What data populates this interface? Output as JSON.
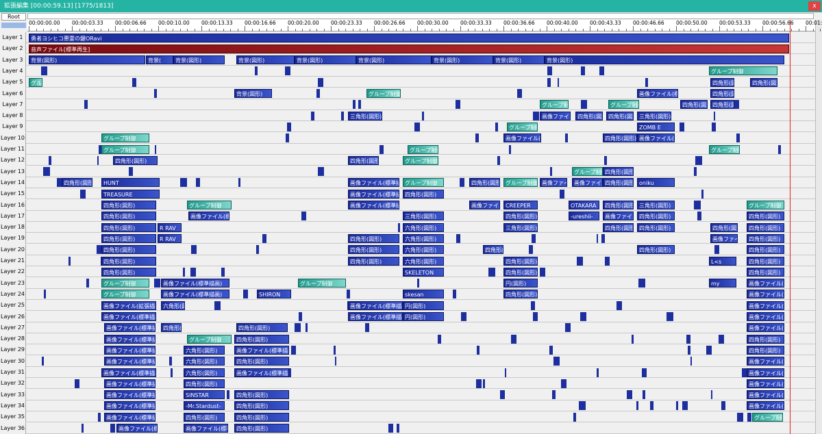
{
  "header": {
    "title": "拡張編集 [00:00:59.13] [1775/1813]",
    "close": "x",
    "root": "Root"
  },
  "ruler": {
    "labels": [
      "00:00:00.00",
      "00:00:03.33",
      "00:00:06.66",
      "00:00:10.00",
      "00:00:13.33",
      "00:00:16.66",
      "00:00:20.00",
      "00:00:23.33",
      "00:00:26.66",
      "00:00:30.00",
      "00:00:33.33",
      "00:00:36.66",
      "00:00:40.00",
      "00:00:43.33",
      "00:00:46.66",
      "00:00:50.00",
      "00:00:53.33",
      "00:00:56.66",
      "00:01:"
    ]
  },
  "layers": [
    {
      "name": "Layer 1",
      "clips": [
        "勇者ヨシヒコ悪霊の鍵ORavi"
      ]
    },
    {
      "name": "Layer 2",
      "clips": [
        "音声ファイル[標準再生]"
      ]
    },
    {
      "name": "Layer 3",
      "clips": [
        "背景(図形)",
        "背景(",
        "背景(図形)",
        "背景(図形)",
        "背景(図形)",
        "背景(図形)",
        "背景(図形)",
        "背景(図形)",
        "背景(図形)"
      ]
    },
    {
      "name": "Layer 4",
      "clips": [
        "グループ制御"
      ]
    },
    {
      "name": "Layer 5",
      "clips": [
        "グル",
        "四角形(図",
        "四角形(図形)"
      ]
    },
    {
      "name": "Layer 6",
      "clips": [
        "背景(図形)",
        "グループ制御",
        "画像ファイル(標準",
        "四角形(図"
      ]
    },
    {
      "name": "Layer 7",
      "clips": [
        "グループ制",
        "グループ制御",
        "四角形(図形)",
        "四角形(図"
      ]
    },
    {
      "name": "Layer 8",
      "clips": [
        "三角形(図形)",
        "画像ファイル",
        "四角形(図形)",
        "四角形(図形)",
        "三角形(図形)"
      ]
    },
    {
      "name": "Layer 9",
      "clips": [
        "グループ制御",
        "ZOMB E"
      ]
    },
    {
      "name": "Layer 10",
      "clips": [
        "グループ制御",
        "画像ファイル(標準",
        "四角形(図形)",
        "画像ファイル(標準"
      ]
    },
    {
      "name": "Layer 11",
      "clips": [
        "グループ制御",
        "グループ制御",
        "グループ制御"
      ]
    },
    {
      "name": "Layer 12",
      "clips": [
        "四角形(図形)",
        "四角形(図形)",
        "グループ制御"
      ]
    },
    {
      "name": "Layer 13",
      "clips": [
        "グループ制御",
        "四角形(図形)"
      ]
    },
    {
      "name": "Layer 14",
      "clips": [
        "四角形(図形)",
        "HUNT",
        "画像ファイル(標準描画)",
        "グループ制御",
        "四角形(図形)",
        "グループ制御",
        "画像ファイル",
        "画像ファイル",
        "四角形(図形)",
        "oniku"
      ]
    },
    {
      "name": "Layer 15",
      "clips": [
        "TREASURE",
        "画像ファイル(標準描画)",
        "四角形(図形)"
      ]
    },
    {
      "name": "Layer 16",
      "clips": [
        "四角形(図形)",
        "グループ制御",
        "画像ファイル(標準描画)",
        "画像ファイル",
        "CREEPER",
        "OTAKARA",
        "四角形(図形)",
        "三角形(図形)",
        "グループ制御"
      ]
    },
    {
      "name": "Layer 17",
      "clips": [
        "四角形(図形)",
        "画像ファイル(標準",
        "三角形(図形)",
        "四角形(図形)",
        "-ureshii-",
        "画像ファイル",
        "四角形(図形)",
        "四角形(図形)"
      ]
    },
    {
      "name": "Layer 18",
      "clips": [
        "四角形(図形)",
        "R RAV",
        "六角形(図形)",
        "三角形(図形)",
        "四角形(図形)",
        "四角形(図形)",
        "四角形(図形)",
        "四角形(図形)"
      ]
    },
    {
      "name": "Layer 19",
      "clips": [
        "四角形(図形)",
        "R RAV",
        "四角形(図形)",
        "六角形(図形)",
        "画像ファイル",
        "四角形(図形)"
      ]
    },
    {
      "name": "Layer 20",
      "clips": [
        "四角形(図形)",
        "四角形(図形)",
        "六角形(図形)",
        "四角形(図形)",
        "四角形(図形)",
        "四角形(図形)"
      ]
    },
    {
      "name": "Layer 21",
      "clips": [
        "四角形(図形)",
        "四角形(図形)",
        "六角形(図形)",
        "四角形(図形)",
        "L<s",
        "四角形(図形)"
      ]
    },
    {
      "name": "Layer 22",
      "clips": [
        "四角形(図形)",
        "SKELETON",
        "四角形(図形)",
        "四角形(図形)"
      ]
    },
    {
      "name": "Layer 23",
      "clips": [
        "グループ制御",
        "画像ファイル(標準描画)",
        "グループ制御",
        "円(図形)",
        "my",
        "画像ファイル(拡張描画)"
      ]
    },
    {
      "name": "Layer 24",
      "clips": [
        "グループ制御",
        "画像ファイル(標準描画)",
        "SHIRON",
        "skesan",
        "四角形(図形)",
        "画像ファイル(拡張描画)"
      ]
    },
    {
      "name": "Layer 25",
      "clips": [
        "画像ファイル(拡張描画)",
        "六角形(図形)",
        "画像ファイル(標準描画)",
        "円(図形)",
        "画像ファイル(拡張描画)"
      ]
    },
    {
      "name": "Layer 26",
      "clips": [
        "画像ファイル(標準描画)",
        "画像ファイル(標準描画)",
        "円(図形)",
        "画像ファイル(拡張描画)"
      ]
    },
    {
      "name": "Layer 27",
      "clips": [
        "画像ファイル(標準描画)",
        "四角形(図形)",
        "四角形(図形)",
        "画像ファイル(標準描画)"
      ]
    },
    {
      "name": "Layer 28",
      "clips": [
        "画像ファイル(標準描画)",
        "グループ制御",
        "四角形(図形)",
        "四角形(図形)"
      ]
    },
    {
      "name": "Layer 29",
      "clips": [
        "画像ファイル(標準描画)",
        "六角形(図形)",
        "画像ファイル(標準描画)",
        "四角形(図形)"
      ]
    },
    {
      "name": "Layer 30",
      "clips": [
        "画像ファイル(標準描画)",
        "六角形(図形)",
        "四角形(図形)",
        "画像ファイル(標準描画)"
      ]
    },
    {
      "name": "Layer 31",
      "clips": [
        "画像ファイル(標準描画)",
        "六角形(図形)",
        "画像ファイル(標準描画)",
        "画像ファイル(標準描画)"
      ]
    },
    {
      "name": "Layer 32",
      "clips": [
        "画像ファイル(標準描画)",
        "四角形(図形)",
        "画像ファイル(標準描画)"
      ]
    },
    {
      "name": "Layer 33",
      "clips": [
        "画像ファイル(標準描画)",
        "SINSTAR",
        "四角形(図形)",
        "画像ファイル(標準描画)"
      ]
    },
    {
      "name": "Layer 34",
      "clips": [
        "画像ファイル(標準描画)",
        "-Mr.Stardust-",
        "四角形(図形)",
        "画像ファイル(標準描画)"
      ]
    },
    {
      "name": "Layer 35",
      "clips": [
        "画像ファイル(標準描画)",
        "四角形(図形)",
        "四角形(図形)",
        "グループ制御"
      ]
    },
    {
      "name": "Layer 36",
      "clips": [
        "画像ファイル(標準",
        "画像ファイル(標準",
        "四角形(図形)"
      ]
    }
  ]
}
